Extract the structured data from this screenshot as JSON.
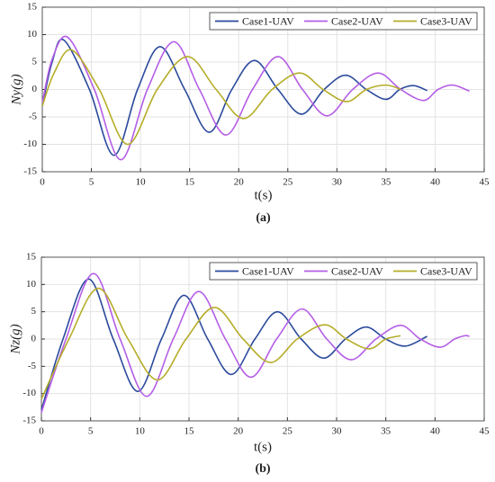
{
  "chart_data": [
    {
      "type": "line",
      "caption": "(a)",
      "xlabel": "t(s)",
      "ylabel": "Ny(g)",
      "xlim": [
        0,
        45
      ],
      "xticks": [
        0,
        5,
        10,
        15,
        20,
        25,
        30,
        35,
        40,
        45
      ],
      "ylim": [
        -15,
        15
      ],
      "yticks": [
        -15,
        -10,
        -5,
        0,
        5,
        10,
        15
      ],
      "grid": true,
      "legend": "top-right",
      "series": [
        {
          "name": "Case1-UAV",
          "color": "#2b4a9c",
          "x": [
            0,
            1,
            2.2,
            4.8,
            7.3,
            9.7,
            12,
            14.5,
            17,
            19.3,
            21.6,
            24,
            26.4,
            28.7,
            30.9,
            33,
            35,
            36.4,
            37.8,
            39.2
          ],
          "values": [
            -3,
            5,
            9,
            0,
            -12,
            0,
            7.8,
            0,
            -7.8,
            0,
            5.3,
            0,
            -4.5,
            0,
            2.6,
            0,
            -1.8,
            0,
            0.7,
            -0.2
          ]
        },
        {
          "name": "Case2-UAV",
          "color": "#b55ee6",
          "x": [
            0,
            1,
            2.6,
            5.3,
            8,
            10.7,
            13.4,
            16,
            18.7,
            21.4,
            24,
            26.5,
            29,
            31.6,
            34.2,
            36.5,
            38.8,
            40.3,
            41.8,
            43.5
          ],
          "values": [
            -2.5,
            5.5,
            9.5,
            0,
            -12.8,
            0,
            8.7,
            0,
            -8.3,
            0,
            6,
            0,
            -4.8,
            0,
            3,
            0,
            -2,
            0,
            0.8,
            -0.3
          ]
        },
        {
          "name": "Case3-UAV",
          "color": "#b5ad28",
          "x": [
            0,
            1.2,
            3,
            5.8,
            8.7,
            11.7,
            14.8,
            17.7,
            20.5,
            23.4,
            26.2,
            28.6,
            31,
            33,
            35,
            36.5
          ],
          "values": [
            -3,
            3,
            7.2,
            0,
            -10,
            0,
            6,
            0,
            -5.3,
            0,
            3,
            0,
            -2.2,
            0,
            0.8,
            0
          ]
        }
      ]
    },
    {
      "type": "line",
      "caption": "(b)",
      "xlabel": "t(s)",
      "ylabel": "Nz(g)",
      "xlim": [
        0,
        45
      ],
      "xticks": [
        0,
        5,
        10,
        15,
        20,
        25,
        30,
        35,
        40,
        45
      ],
      "ylim": [
        -15,
        15
      ],
      "yticks": [
        -15,
        -10,
        -5,
        0,
        5,
        10,
        15
      ],
      "grid": true,
      "legend": "top-right",
      "series": [
        {
          "name": "Case1-UAV",
          "color": "#2b4a9c",
          "x": [
            0,
            2.2,
            4.8,
            7.3,
            9.8,
            12.2,
            14.5,
            16.9,
            19.3,
            21.7,
            24,
            26.4,
            28.7,
            30.9,
            33,
            35,
            37,
            39.2
          ],
          "values": [
            -13,
            0,
            11,
            0,
            -9.6,
            0,
            8,
            0,
            -6.5,
            0,
            5,
            0,
            -3.5,
            0,
            2.2,
            0,
            -1.3,
            0.5
          ]
        },
        {
          "name": "Case2-UAV",
          "color": "#b55ee6",
          "x": [
            0,
            2.5,
            5.3,
            8,
            10.7,
            13.4,
            16,
            18.7,
            21.3,
            23.9,
            26.5,
            29,
            31.5,
            34,
            36.5,
            38.5,
            40.5,
            42,
            43,
            43.5
          ],
          "values": [
            -13.5,
            0,
            12,
            0,
            -10.5,
            0,
            8.7,
            0,
            -7,
            0,
            5.5,
            0,
            -3.8,
            0,
            2.5,
            0,
            -1.5,
            0,
            0.6,
            0.5
          ]
        },
        {
          "name": "Case3-UAV",
          "color": "#b5ad28",
          "x": [
            0,
            2.8,
            5.8,
            8.8,
            11.8,
            14.7,
            17.6,
            20.5,
            23.3,
            26,
            28.8,
            31,
            33.3,
            35,
            36.5
          ],
          "values": [
            -11,
            0,
            9.3,
            0,
            -7.5,
            0,
            5.8,
            0,
            -4.3,
            0,
            2.6,
            0,
            -1.8,
            0,
            0.6
          ]
        }
      ]
    }
  ]
}
